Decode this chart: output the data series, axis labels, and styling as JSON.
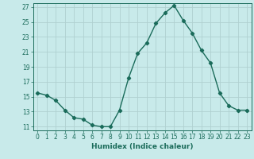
{
  "x": [
    0,
    1,
    2,
    3,
    4,
    5,
    6,
    7,
    8,
    9,
    10,
    11,
    12,
    13,
    14,
    15,
    16,
    17,
    18,
    19,
    20,
    21,
    22,
    23
  ],
  "y": [
    15.5,
    15.2,
    14.5,
    13.2,
    12.2,
    12.0,
    11.2,
    11.0,
    11.0,
    13.2,
    17.5,
    20.8,
    22.2,
    24.8,
    26.2,
    27.2,
    25.2,
    23.5,
    21.2,
    19.5,
    15.5,
    13.8,
    13.2,
    13.2
  ],
  "line_color": "#1a6b5a",
  "marker": "D",
  "marker_size": 2.2,
  "bg_color": "#c8eaea",
  "grid_color": "#b0d0d0",
  "xlabel": "Humidex (Indice chaleur)",
  "xlim": [
    -0.5,
    23.5
  ],
  "ylim": [
    10.5,
    27.5
  ],
  "yticks": [
    11,
    13,
    15,
    17,
    19,
    21,
    23,
    25,
    27
  ],
  "xticks": [
    0,
    1,
    2,
    3,
    4,
    5,
    6,
    7,
    8,
    9,
    10,
    11,
    12,
    13,
    14,
    15,
    16,
    17,
    18,
    19,
    20,
    21,
    22,
    23
  ],
  "xlabel_fontsize": 6.5,
  "tick_fontsize": 5.5,
  "line_width": 1.0
}
